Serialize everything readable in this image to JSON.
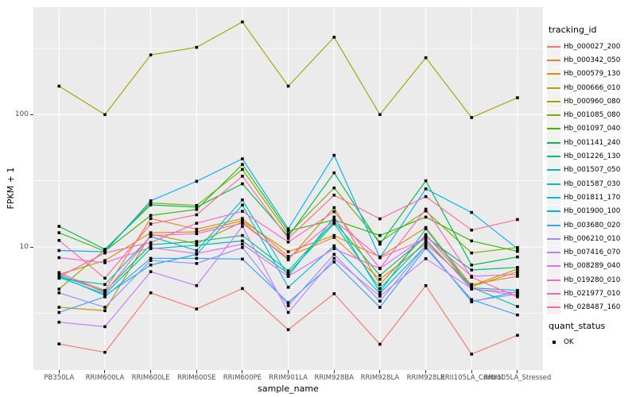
{
  "figure": {
    "x_axis": {
      "label": "sample_name",
      "categories": [
        "PB350LA",
        "RRIM600LA",
        "RRIM600LE",
        "RRIM600SE",
        "RRIM600PE",
        "RRIM901LA",
        "RRIM928BA",
        "RRIM928LA",
        "RRIM928LE",
        "RRII105LA_Control",
        "RRII105LA_Stressed"
      ]
    },
    "y_axis": {
      "label": "FPKM + 1",
      "scale": "log10",
      "tick_labels": [
        "100",
        "10"
      ],
      "tick_values": [
        100,
        10
      ],
      "minor_breaks": [
        3.162,
        31.62,
        316.2
      ]
    },
    "legend": {
      "tracking_title": "tracking_id",
      "quant_title": "quant_status",
      "quant_items": [
        {
          "label": "OK",
          "marker": "black-square"
        }
      ]
    },
    "colors": {
      "panel_background": "#EBEBEB",
      "grid": "#FFFFFF",
      "axis_text": "#4D4D4D",
      "tick_mark": "#333333",
      "marker": "#000000",
      "legend_key_background": "#F2F2F2"
    }
  },
  "chart_data": {
    "type": "line",
    "title": "",
    "xlabel": "sample_name",
    "ylabel": "FPKM + 1",
    "yscale": "log10",
    "ylim": [
      1.17,
      649
    ],
    "grid": "on",
    "legend_position": "right",
    "marker": "filled-black-square",
    "categories": [
      "PB350LA",
      "RRIM600LA",
      "RRIM600LE",
      "RRIM600SE",
      "RRIM600PE",
      "RRIM901LA",
      "RRIM928BA",
      "RRIM928LA",
      "RRIM928LE",
      "RRII105LA_Control",
      "RRII105LA_Stressed"
    ],
    "series": [
      {
        "name": "Hb_000027_200",
        "color": "#F8766D",
        "values": [
          1.85,
          1.6,
          4.5,
          3.4,
          4.85,
          2.37,
          4.43,
          1.84,
          5.1,
          1.55,
          2.15
        ]
      },
      {
        "name": "Hb_000342_050",
        "color": "#EA8331",
        "values": [
          6.3,
          4.7,
          16.4,
          13.6,
          16.4,
          8.5,
          11.8,
          5.7,
          10.6,
          5.2,
          6.0
        ]
      },
      {
        "name": "Hb_000579_130",
        "color": "#D89000",
        "values": [
          6.2,
          7.9,
          12.8,
          13.0,
          15.8,
          9.2,
          12.2,
          8.4,
          14.0,
          5.1,
          6.8
        ]
      },
      {
        "name": "Hb_000666_010",
        "color": "#C09B00",
        "values": [
          3.5,
          3.3,
          12.5,
          10.6,
          15.5,
          8.0,
          19.8,
          5.2,
          12.4,
          5.0,
          6.5
        ]
      },
      {
        "name": "Hb_000960_080",
        "color": "#A3A500",
        "values": [
          164,
          100,
          282,
          322,
          501,
          164,
          384,
          100,
          269,
          95,
          134
        ]
      },
      {
        "name": "Hb_001085_080",
        "color": "#7CAE00",
        "values": [
          4.8,
          9.5,
          21.5,
          20.6,
          38.5,
          12.5,
          27.9,
          10.9,
          18.7,
          9.0,
          9.9
        ]
      },
      {
        "name": "Hb_001097_040",
        "color": "#39B600",
        "values": [
          12.8,
          9.3,
          17.3,
          19.2,
          42.0,
          13.2,
          16.0,
          12.2,
          16.8,
          11.1,
          9.25
        ]
      },
      {
        "name": "Hb_001141_240",
        "color": "#00BB4E",
        "values": [
          14.3,
          9.6,
          20.8,
          20.0,
          30.0,
          12.0,
          36.3,
          10.5,
          31.6,
          7.3,
          8.4
        ]
      },
      {
        "name": "Hb_001226_130",
        "color": "#00BF7D",
        "values": [
          6.1,
          4.6,
          10.4,
          11.0,
          12.2,
          6.6,
          15.5,
          6.1,
          11.9,
          6.7,
          7.0
        ]
      },
      {
        "name": "Hb_001507_050",
        "color": "#00C1A3",
        "values": [
          5.9,
          4.4,
          9.7,
          10.3,
          11.1,
          6.3,
          15.0,
          4.85,
          11.1,
          4.95,
          3.55
        ]
      },
      {
        "name": "Hb_001587_030",
        "color": "#00BFC4",
        "values": [
          5.8,
          5.2,
          12.0,
          9.4,
          22.7,
          6.0,
          16.8,
          4.55,
          13.7,
          4.9,
          4.7
        ]
      },
      {
        "name": "Hb_001811_170",
        "color": "#00BAE0",
        "values": [
          6.0,
          4.3,
          7.3,
          8.8,
          20.7,
          4.96,
          10.2,
          4.45,
          10.2,
          3.85,
          4.6
        ]
      },
      {
        "name": "Hb_001900_100",
        "color": "#00B0F6",
        "values": [
          9.4,
          9.2,
          22.3,
          31.3,
          46.3,
          13.7,
          49.2,
          8.3,
          27.5,
          18.2,
          9.7
        ]
      },
      {
        "name": "Hb_003680_020",
        "color": "#35A2FF",
        "values": [
          3.2,
          4.2,
          8.2,
          8.2,
          8.1,
          3.8,
          7.7,
          3.5,
          9.8,
          4.0,
          3.06
        ]
      },
      {
        "name": "Hb_006210_010",
        "color": "#9590FF",
        "values": [
          4.5,
          3.5,
          7.9,
          7.5,
          9.9,
          3.6,
          8.8,
          3.9,
          10.2,
          3.9,
          4.4
        ]
      },
      {
        "name": "Hb_007416_070",
        "color": "#C77CFF",
        "values": [
          2.7,
          2.5,
          6.5,
          5.1,
          14.3,
          3.2,
          8.2,
          4.25,
          8.15,
          4.85,
          4.3
        ]
      },
      {
        "name": "Hb_008289_040",
        "color": "#E76BF3",
        "values": [
          8.3,
          7.6,
          9.9,
          8.9,
          10.5,
          6.0,
          9.7,
          6.86,
          12.0,
          6.0,
          6.2
        ]
      },
      {
        "name": "Hb_019280_010",
        "color": "#FA62DB",
        "values": [
          6.4,
          4.5,
          12.2,
          12.6,
          15.1,
          8.2,
          15.9,
          8.3,
          11.5,
          4.8,
          4.5
        ]
      },
      {
        "name": "Hb_021977_010",
        "color": "#FF62BC",
        "values": [
          5.95,
          9.0,
          10.8,
          15.1,
          18.6,
          10.9,
          18.5,
          6.9,
          19.3,
          5.9,
          4.2
        ]
      },
      {
        "name": "Hb_028487_160",
        "color": "#FF6A98",
        "values": [
          11.2,
          5.8,
          14.9,
          17.5,
          34.3,
          11.6,
          24.6,
          16.3,
          24.0,
          13.4,
          16.1
        ]
      }
    ]
  }
}
